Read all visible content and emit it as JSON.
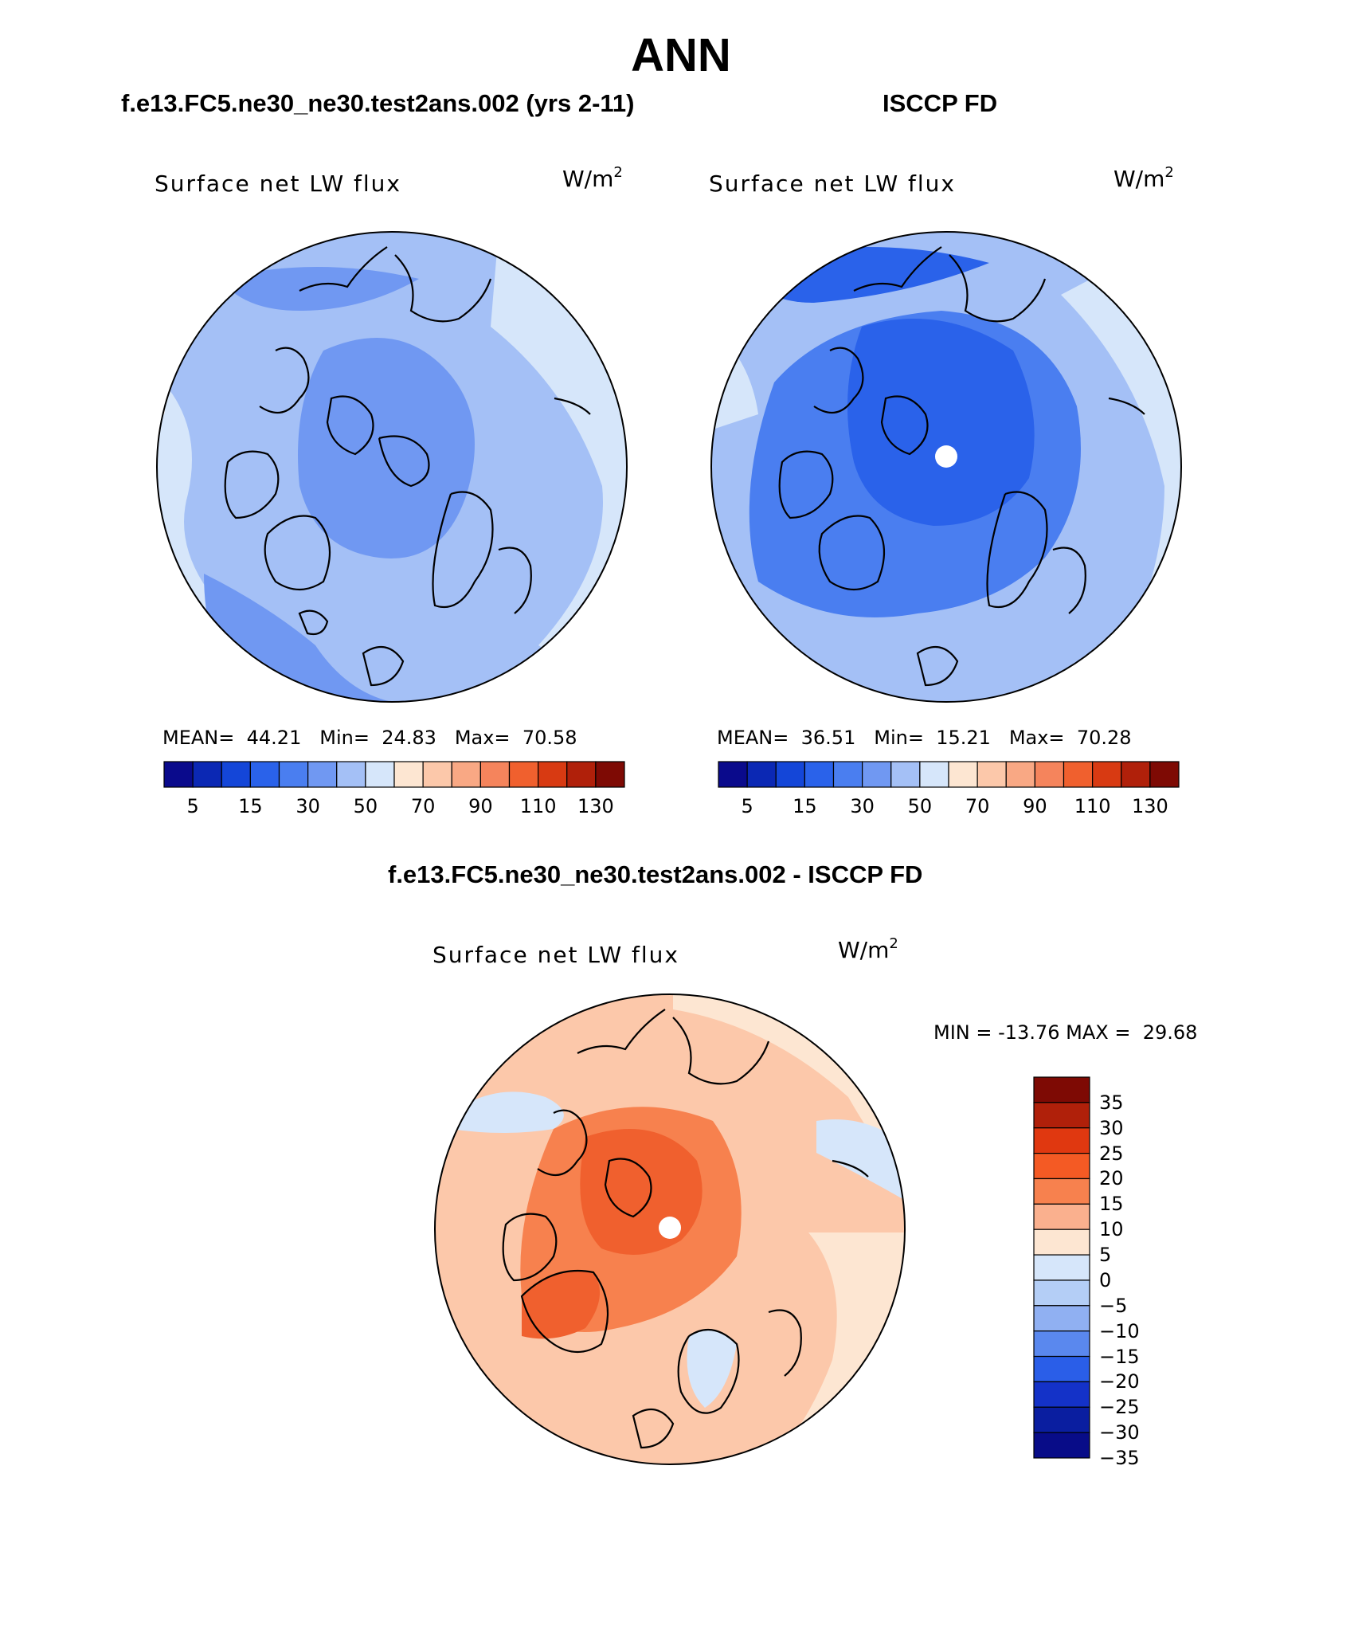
{
  "title": "ANN",
  "panels": [
    {
      "case_title": "f.e13.FC5.ne30_ne30.test2ans.002 (yrs 2-11)",
      "label": "Surface net LW flux",
      "units": "W/m",
      "units_exp": "2",
      "stats": {
        "mean_label": "MEAN=",
        "mean": "44.21",
        "min_label": "Min=",
        "min": "24.83",
        "max_label": "Max=",
        "max": "70.58"
      }
    },
    {
      "case_title": "ISCCP FD",
      "label": "Surface net LW flux",
      "units": "W/m",
      "units_exp": "2",
      "stats": {
        "mean_label": "MEAN=",
        "mean": "36.51",
        "min_label": "Min=",
        "min": "15.21",
        "max_label": "Max=",
        "max": "70.28"
      }
    },
    {
      "case_title": "f.e13.FC5.ne30_ne30.test2ans.002 - ISCCP FD",
      "label": "Surface net LW flux",
      "units": "W/m",
      "units_exp": "2",
      "stats": {
        "min_label": "MIN =",
        "min": "-13.76",
        "max_label": "MAX =",
        "max": "29.68"
      }
    }
  ],
  "horizontal_colorbar": {
    "colors": [
      "#0a0a8c",
      "#0b28b4",
      "#1446d8",
      "#2a62ea",
      "#4a7ef0",
      "#7098f2",
      "#a4c0f6",
      "#d6e6fa",
      "#fde6d2",
      "#fcc8aa",
      "#f9a884",
      "#f5845c",
      "#f0602e",
      "#d83a12",
      "#b0200a",
      "#7e0a04"
    ],
    "labels": [
      "5",
      "15",
      "30",
      "50",
      "70",
      "90",
      "110",
      "130"
    ]
  },
  "vertical_colorbar": {
    "colors": [
      "#7e0a04",
      "#b0200a",
      "#e03810",
      "#f45a24",
      "#f7814e",
      "#fab08e",
      "#fde6d2",
      "#d6e6fa",
      "#b4cef6",
      "#90b0f2",
      "#5a88ee",
      "#2a5ee8",
      "#1432c8",
      "#0a1ea0",
      "#080c88"
    ],
    "labels": [
      "35",
      "30",
      "25",
      "20",
      "15",
      "10",
      "5",
      "0",
      "−5",
      "−10",
      "−15",
      "−20",
      "−25",
      "−30",
      "−35"
    ]
  },
  "map_colors": {
    "model_base": "#a4c0f6",
    "model_mid": "#7098f2",
    "model_light": "#d6e6fa",
    "model_warm": "#fde6d2",
    "obs_base": "#a4c0f6",
    "obs_mid": "#4a7ef0",
    "obs_deep": "#2a62ea",
    "obs_light": "#d6e6fa",
    "diff_base": "#fcc8aa",
    "diff_light": "#fde6d2",
    "diff_mid": "#f7814e",
    "diff_deep": "#f0602e",
    "diff_neg": "#d6e6fa"
  }
}
